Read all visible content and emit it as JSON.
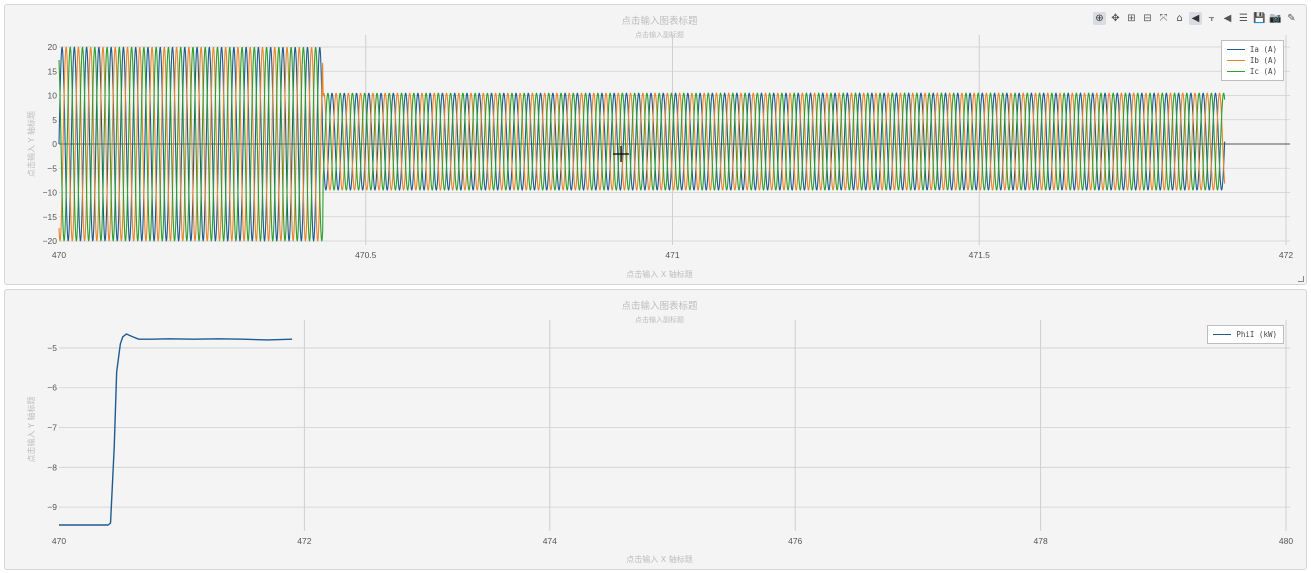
{
  "charts": [
    {
      "title": "点击输入图表标题",
      "subtitle": "点击输入副标题",
      "xlabel": "点击输入 X 轴标题",
      "ylabel": "点击输入 Y 轴标题",
      "x_ticks": [
        {
          "v": 470,
          "label": "470"
        },
        {
          "v": 470.5,
          "label": "470.5"
        },
        {
          "v": 471,
          "label": "471"
        },
        {
          "v": 471.5,
          "label": "471.5"
        },
        {
          "v": 472,
          "label": "472"
        }
      ],
      "y_ticks": [
        {
          "v": 20,
          "label": "20"
        },
        {
          "v": 15,
          "label": "15"
        },
        {
          "v": 10,
          "label": "10"
        },
        {
          "v": 5,
          "label": "5"
        },
        {
          "v": 0,
          "label": "0"
        },
        {
          "v": -5,
          "label": "−5"
        },
        {
          "v": -10,
          "label": "−10"
        },
        {
          "v": -15,
          "label": "−15"
        },
        {
          "v": -20,
          "label": "−20"
        }
      ],
      "legend": [
        {
          "label": "Ia (A)",
          "color": "#1f5b8f"
        },
        {
          "label": "Ib (A)",
          "color": "#e8862a"
        },
        {
          "label": "Ic (A)",
          "color": "#2ca02c"
        }
      ]
    },
    {
      "title": "点击输入图表标题",
      "subtitle": "点击输入副标题",
      "xlabel": "点击输入 X 轴标题",
      "ylabel": "点击输入 Y 轴标题",
      "x_ticks": [
        {
          "v": 470,
          "label": "470"
        },
        {
          "v": 472,
          "label": "472"
        },
        {
          "v": 474,
          "label": "474"
        },
        {
          "v": 476,
          "label": "476"
        },
        {
          "v": 478,
          "label": "478"
        },
        {
          "v": 480,
          "label": "480"
        }
      ],
      "y_ticks": [
        {
          "v": -5,
          "label": "−5"
        },
        {
          "v": -6,
          "label": "−6"
        },
        {
          "v": -7,
          "label": "−7"
        },
        {
          "v": -8,
          "label": "−8"
        },
        {
          "v": -9,
          "label": "−9"
        }
      ],
      "legend": [
        {
          "label": "PhiI (kW)",
          "color": "#1f5b8f"
        }
      ]
    }
  ],
  "modebar": [
    {
      "name": "zoom-icon",
      "glyph": "⊕",
      "active": true
    },
    {
      "name": "pan-icon",
      "glyph": "✥",
      "active": false
    },
    {
      "name": "zoom-in-icon",
      "glyph": "⊞",
      "active": false
    },
    {
      "name": "zoom-out-icon",
      "glyph": "⊟",
      "active": false
    },
    {
      "name": "autoscale-icon",
      "glyph": "⤧",
      "active": false
    },
    {
      "name": "home-icon",
      "glyph": "⌂",
      "active": false
    },
    {
      "name": "hover-closest-icon",
      "glyph": "◀",
      "active": true
    },
    {
      "name": "spike-lines-icon",
      "glyph": "⫟",
      "active": false
    },
    {
      "name": "hover-single-icon",
      "glyph": "◀",
      "active": false
    },
    {
      "name": "hover-compare-icon",
      "glyph": "☰",
      "active": false
    },
    {
      "name": "save-icon",
      "glyph": "💾",
      "active": false
    },
    {
      "name": "camera-icon",
      "glyph": "📷",
      "active": false
    },
    {
      "name": "pencil-icon",
      "glyph": "✎",
      "active": false
    }
  ],
  "chart_data": [
    {
      "type": "line",
      "title": "点击输入图表标题",
      "xlabel": "点击输入 X 轴标题",
      "ylabel": "点击输入 Y 轴标题",
      "xlim": [
        470,
        472
      ],
      "ylim": [
        -20,
        20
      ],
      "x_range_data": [
        470,
        471.9
      ],
      "fault_end_x": 470.43,
      "frequency_hz": 50,
      "series": [
        {
          "name": "Ia (A)",
          "amplitude_before": 20,
          "amplitude_after": 10,
          "phase_deg": 0,
          "offset_after": 0.5
        },
        {
          "name": "Ib (A)",
          "amplitude_before": 20,
          "amplitude_after": 10,
          "phase_deg": -120,
          "offset_after": 0.5
        },
        {
          "name": "Ic (A)",
          "amplitude_before": 20,
          "amplitude_after": 10,
          "phase_deg": 120,
          "offset_after": 0.5
        }
      ],
      "legend_position": "top-right"
    },
    {
      "type": "line",
      "title": "点击输入图表标题",
      "xlabel": "点击输入 X 轴标题",
      "ylabel": "点击输入 Y 轴标题",
      "xlim": [
        470,
        480
      ],
      "ylim": [
        -9.5,
        -4.6
      ],
      "series": [
        {
          "name": "PhiI (kW)",
          "x": [
            470.0,
            470.2,
            470.4,
            470.42,
            470.45,
            470.47,
            470.5,
            470.52,
            470.55,
            470.6,
            470.65,
            470.75,
            470.9,
            471.1,
            471.3,
            471.5,
            471.7,
            471.9
          ],
          "y": [
            -9.45,
            -9.45,
            -9.45,
            -9.4,
            -7.5,
            -5.6,
            -4.9,
            -4.72,
            -4.65,
            -4.72,
            -4.78,
            -4.78,
            -4.77,
            -4.78,
            -4.77,
            -4.78,
            -4.8,
            -4.78
          ]
        }
      ],
      "legend_position": "top-right"
    }
  ]
}
